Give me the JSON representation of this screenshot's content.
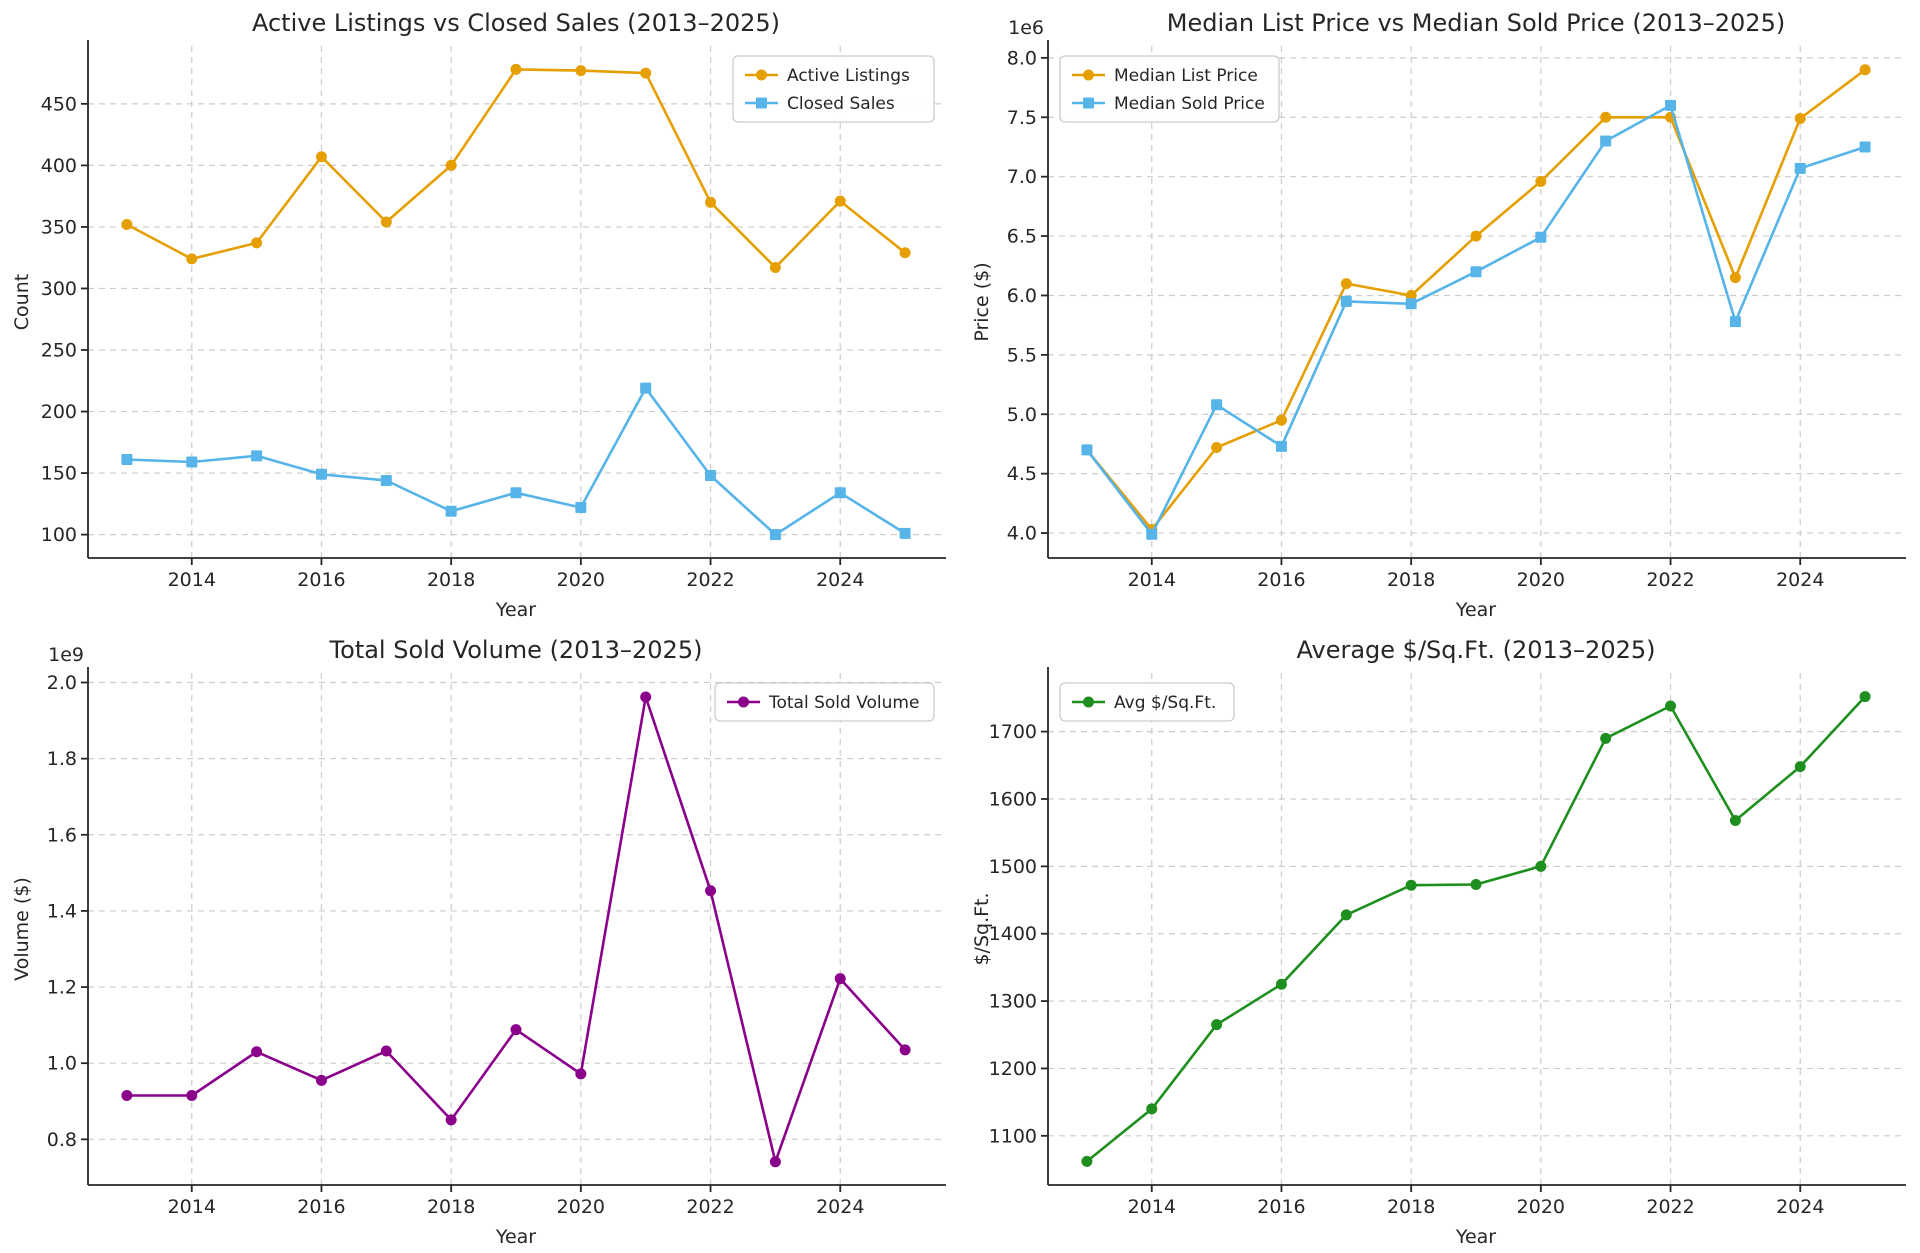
{
  "figure": {
    "background": "#ffffff",
    "text_color": "#262626",
    "grid_color": "#cccccc",
    "legend_border_color": "#cccccc"
  },
  "chart_data": [
    {
      "type": "line",
      "title": "Active Listings vs Closed Sales (2013–2025)",
      "xlabel": "Year",
      "ylabel": "Count",
      "x": [
        2013,
        2014,
        2015,
        2016,
        2017,
        2018,
        2019,
        2020,
        2021,
        2022,
        2023,
        2024,
        2025
      ],
      "xlim": [
        2012.4,
        2025.6
      ],
      "ylim": [
        81,
        497
      ],
      "xticks": [
        2014,
        2016,
        2018,
        2020,
        2022,
        2024
      ],
      "xtick_labels": [
        "2014",
        "2016",
        "2018",
        "2020",
        "2022",
        "2024"
      ],
      "yticks": [
        100,
        150,
        200,
        250,
        300,
        350,
        400,
        450
      ],
      "ytick_labels": [
        "100",
        "150",
        "200",
        "250",
        "300",
        "350",
        "400",
        "450"
      ],
      "offset_label": "",
      "grid": true,
      "legend_position": "upper-right",
      "series": [
        {
          "name": "Active Listings",
          "color": "#E69F00",
          "marker": "circle",
          "values": [
            352,
            324,
            337,
            407,
            354,
            400,
            478,
            477,
            475,
            370,
            317,
            371,
            329
          ]
        },
        {
          "name": "Closed Sales",
          "color": "#56B4E9",
          "marker": "square",
          "values": [
            161,
            159,
            164,
            149,
            144,
            119,
            134,
            122,
            219,
            148,
            100,
            134,
            101
          ]
        }
      ]
    },
    {
      "type": "line",
      "title": "Median List Price vs Median Sold Price (2013–2025)",
      "xlabel": "Year",
      "ylabel": "Price ($)",
      "x": [
        2013,
        2014,
        2015,
        2016,
        2017,
        2018,
        2019,
        2020,
        2021,
        2022,
        2023,
        2024,
        2025
      ],
      "xlim": [
        2012.4,
        2025.6
      ],
      "ylim": [
        3790000,
        8100000
      ],
      "xticks": [
        2014,
        2016,
        2018,
        2020,
        2022,
        2024
      ],
      "xtick_labels": [
        "2014",
        "2016",
        "2018",
        "2020",
        "2022",
        "2024"
      ],
      "yticks": [
        4000000,
        4500000,
        5000000,
        5500000,
        6000000,
        6500000,
        7000000,
        7500000,
        8000000
      ],
      "ytick_labels": [
        "4.0",
        "4.5",
        "5.0",
        "5.5",
        "6.0",
        "6.5",
        "7.0",
        "7.5",
        "8.0"
      ],
      "offset_label": "1e6",
      "grid": true,
      "legend_position": "upper-left",
      "series": [
        {
          "name": "Median List Price",
          "color": "#E69F00",
          "marker": "circle",
          "values": [
            4700000,
            4030000,
            4720000,
            4950000,
            6100000,
            6000000,
            6500000,
            6960000,
            7500000,
            7500000,
            6150000,
            7490000,
            7900000
          ]
        },
        {
          "name": "Median Sold Price",
          "color": "#56B4E9",
          "marker": "square",
          "values": [
            4700000,
            3990000,
            5080000,
            4730000,
            5950000,
            5930000,
            6200000,
            6490000,
            7300000,
            7600000,
            5780000,
            7070000,
            7250000
          ]
        }
      ]
    },
    {
      "type": "line",
      "title": "Total Sold Volume (2013–2025)",
      "xlabel": "Year",
      "ylabel": "Volume ($)",
      "x": [
        2013,
        2014,
        2015,
        2016,
        2017,
        2018,
        2019,
        2020,
        2021,
        2022,
        2023,
        2024,
        2025
      ],
      "xlim": [
        2012.4,
        2025.6
      ],
      "ylim": [
        680000000,
        2025000000
      ],
      "xticks": [
        2014,
        2016,
        2018,
        2020,
        2022,
        2024
      ],
      "xtick_labels": [
        "2014",
        "2016",
        "2018",
        "2020",
        "2022",
        "2024"
      ],
      "yticks": [
        800000000,
        1000000000,
        1200000000,
        1400000000,
        1600000000,
        1800000000,
        2000000000
      ],
      "ytick_labels": [
        "0.8",
        "1.0",
        "1.2",
        "1.4",
        "1.6",
        "1.8",
        "2.0"
      ],
      "offset_label": "1e9",
      "grid": true,
      "legend_position": "upper-right",
      "series": [
        {
          "name": "Total Sold Volume",
          "color": "#8B008B",
          "marker": "circle",
          "values": [
            915000000,
            915000000,
            1030000000,
            955000000,
            1032000000,
            851000000,
            1088000000,
            972000000,
            1962000000,
            1453000000,
            741000000,
            1222000000,
            1035000000
          ]
        }
      ]
    },
    {
      "type": "line",
      "title": "Average $/Sq.Ft. (2013–2025)",
      "xlabel": "Year",
      "ylabel": "$/Sq.Ft.",
      "x": [
        2013,
        2014,
        2015,
        2016,
        2017,
        2018,
        2019,
        2020,
        2021,
        2022,
        2023,
        2024,
        2025
      ],
      "xlim": [
        2012.4,
        2025.6
      ],
      "ylim": [
        1027,
        1787
      ],
      "xticks": [
        2014,
        2016,
        2018,
        2020,
        2022,
        2024
      ],
      "xtick_labels": [
        "2014",
        "2016",
        "2018",
        "2020",
        "2022",
        "2024"
      ],
      "yticks": [
        1100,
        1200,
        1300,
        1400,
        1500,
        1600,
        1700
      ],
      "ytick_labels": [
        "1100",
        "1200",
        "1300",
        "1400",
        "1500",
        "1600",
        "1700"
      ],
      "offset_label": "",
      "grid": true,
      "legend_position": "upper-left",
      "series": [
        {
          "name": "Avg $/Sq.Ft.",
          "color": "#1E8F1E",
          "marker": "circle",
          "values": [
            1062,
            1140,
            1265,
            1325,
            1428,
            1472,
            1473,
            1500,
            1690,
            1738,
            1568,
            1648,
            1752
          ]
        }
      ]
    }
  ]
}
